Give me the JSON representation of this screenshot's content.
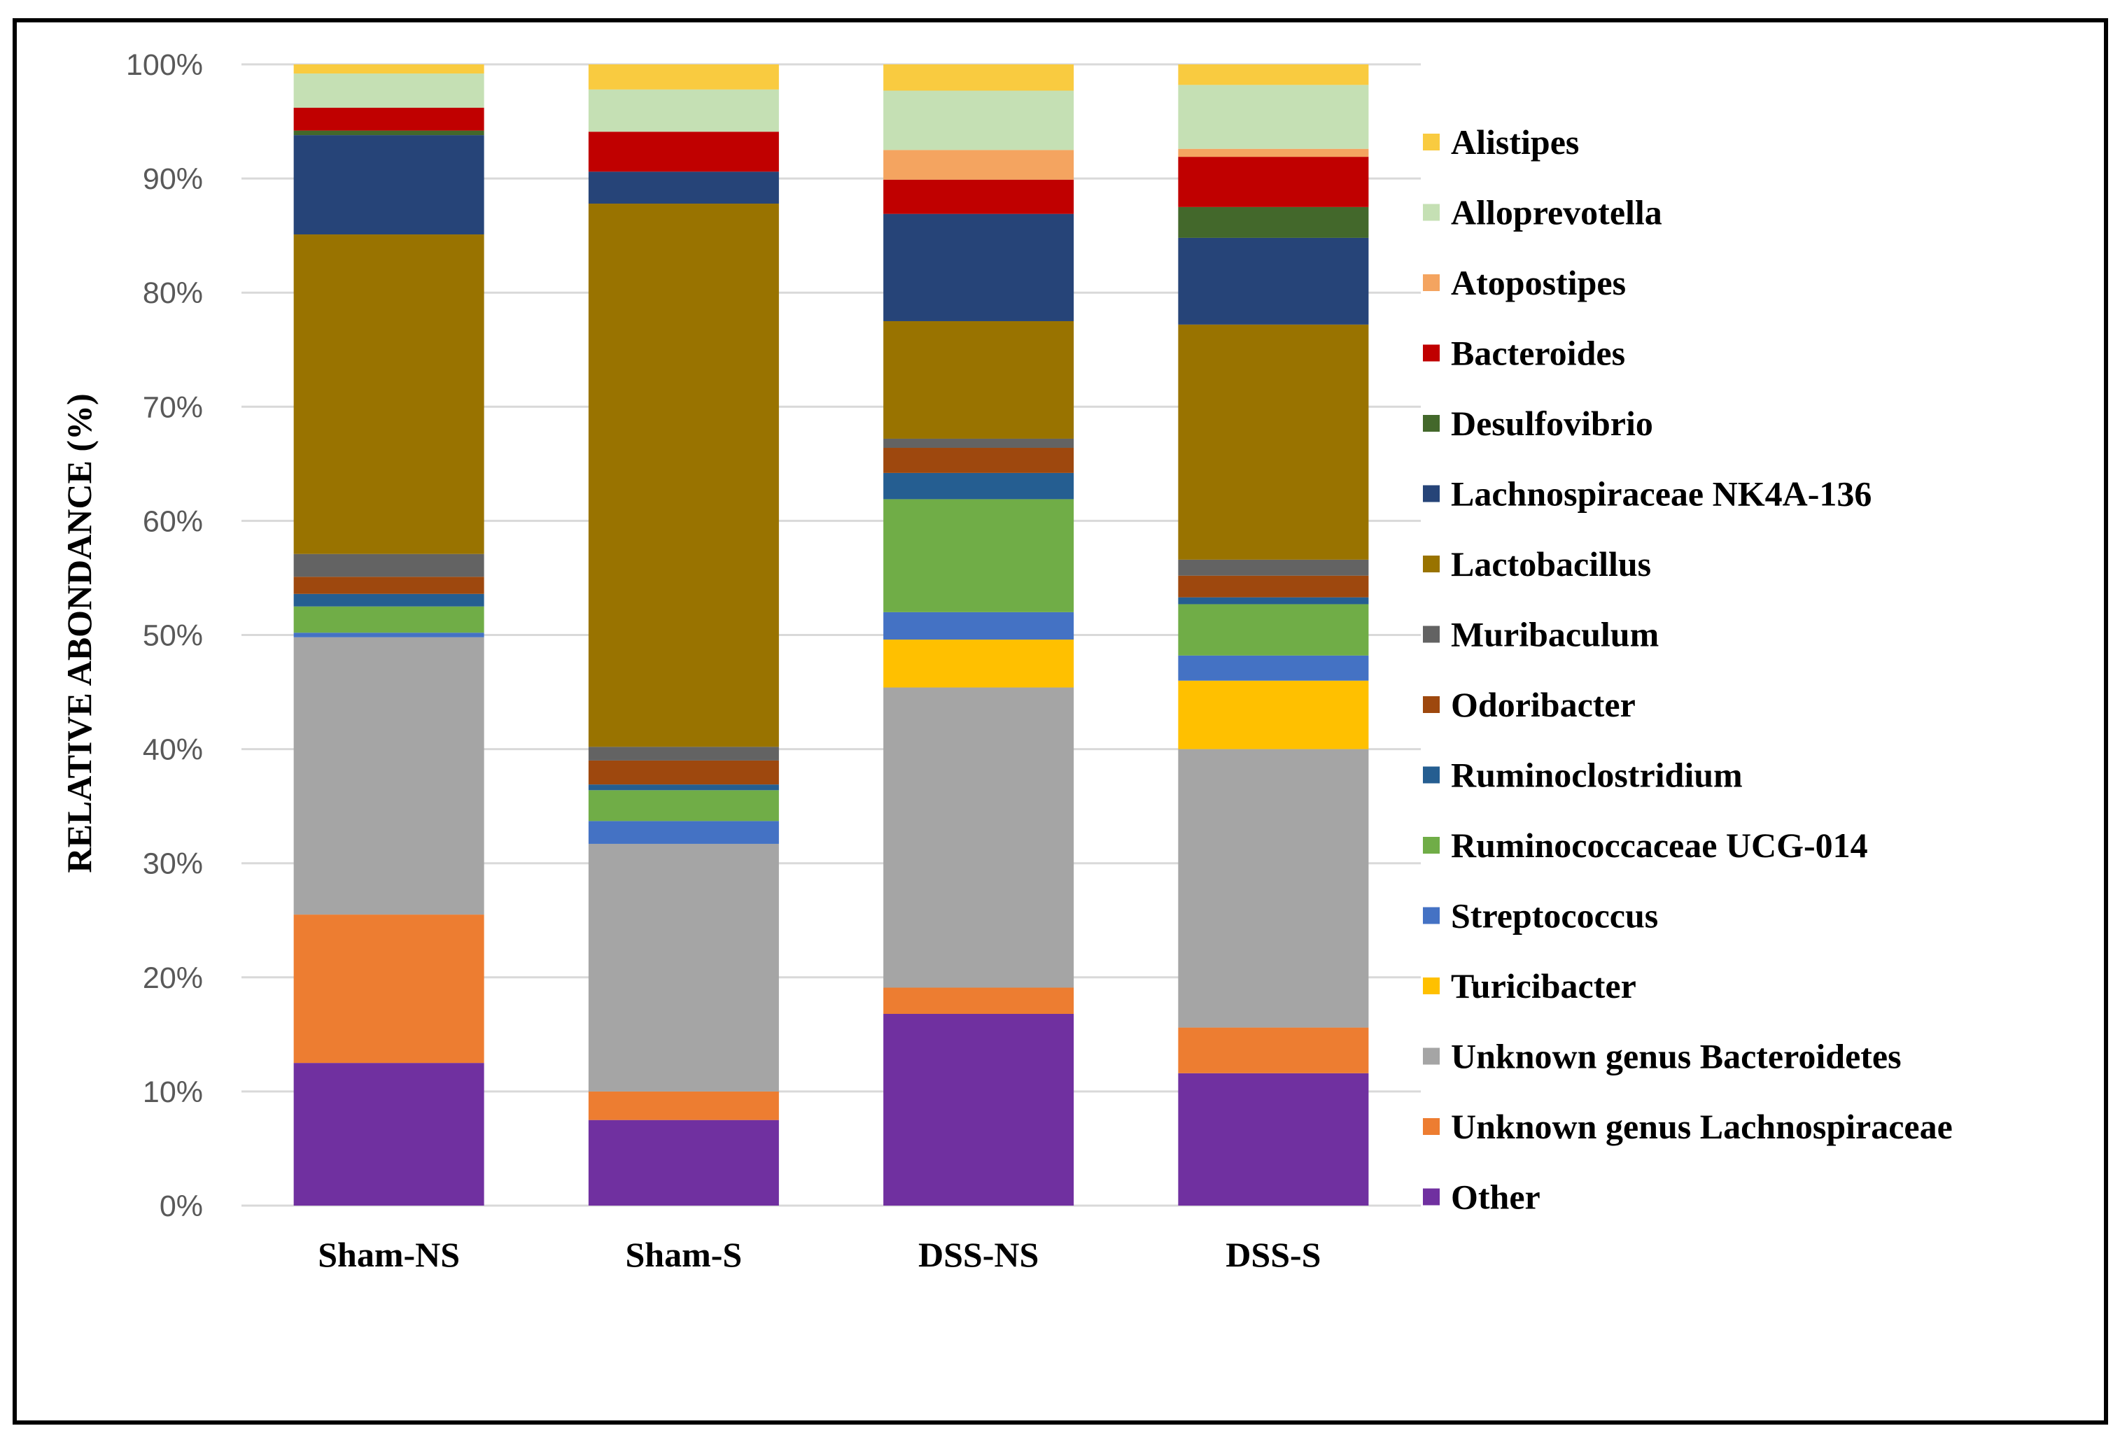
{
  "chart_data": {
    "type": "bar",
    "stacked": true,
    "title": "",
    "xlabel": "",
    "ylabel": "RELATIVE ABONDANCE (%)",
    "ylim": [
      0,
      100
    ],
    "ytick_step": 10,
    "ytick_suffix": "%",
    "grid": true,
    "legend_position": "right",
    "categories": [
      "Sham-NS",
      "Sham-S",
      "DSS-NS",
      "DSS-S"
    ],
    "series": [
      {
        "name": "Other",
        "color": "#7030A0",
        "values": [
          12.5,
          7.5,
          16.8,
          11.6
        ]
      },
      {
        "name": "Unknown genus Lachnospiraceae",
        "color": "#ED7D31",
        "values": [
          13.0,
          2.5,
          2.3,
          4.0
        ]
      },
      {
        "name": "Unknown genus Bacteroidetes",
        "color": "#A5A5A5",
        "values": [
          24.3,
          21.7,
          26.3,
          24.4
        ]
      },
      {
        "name": "Turicibacter",
        "color": "#FFC000",
        "values": [
          0.0,
          0.0,
          4.2,
          6.0
        ]
      },
      {
        "name": "Streptococcus",
        "color": "#4472C4",
        "values": [
          0.4,
          2.0,
          2.4,
          2.2
        ]
      },
      {
        "name": "Ruminococcaceae UCG-014",
        "color": "#70AD47",
        "values": [
          2.3,
          2.7,
          9.9,
          4.5
        ]
      },
      {
        "name": "Ruminoclostridium",
        "color": "#255E91",
        "values": [
          1.1,
          0.5,
          2.3,
          0.6
        ]
      },
      {
        "name": "Odoribacter",
        "color": "#9E480E",
        "values": [
          1.5,
          2.1,
          2.2,
          1.9
        ]
      },
      {
        "name": "Muribaculum",
        "color": "#636363",
        "values": [
          2.0,
          1.2,
          0.8,
          1.4
        ]
      },
      {
        "name": "Lactobacillus",
        "color": "#997300",
        "values": [
          28.0,
          47.6,
          10.3,
          20.6
        ]
      },
      {
        "name": "Lachnospiraceae NK4A-136",
        "color": "#264478",
        "values": [
          8.7,
          2.8,
          9.4,
          7.6
        ]
      },
      {
        "name": "Desulfovibrio",
        "color": "#43682B",
        "values": [
          0.4,
          0.0,
          0.0,
          2.7
        ]
      },
      {
        "name": "Bacteroides",
        "color": "#C00000",
        "values": [
          2.0,
          3.5,
          3.0,
          4.4
        ]
      },
      {
        "name": "Atopostipes",
        "color": "#F4A460",
        "values": [
          0.0,
          0.0,
          2.6,
          0.7
        ]
      },
      {
        "name": "Alloprevotella",
        "color": "#C5E0B4",
        "values": [
          3.0,
          3.7,
          5.2,
          5.6
        ]
      },
      {
        "name": "Alistipes",
        "color": "#F9CB40",
        "values": [
          0.8,
          2.2,
          2.3,
          1.8
        ]
      }
    ],
    "legend_order": [
      "Alistipes",
      "Alloprevotella",
      "Atopostipes",
      "Bacteroides",
      "Desulfovibrio",
      "Lachnospiraceae NK4A-136",
      "Lactobacillus",
      "Muribaculum",
      "Odoribacter",
      "Ruminoclostridium",
      "Ruminococcaceae UCG-014",
      "Streptococcus",
      "Turicibacter",
      "Unknown genus Bacteroidetes",
      "Unknown genus Lachnospiraceae",
      "Other"
    ]
  }
}
